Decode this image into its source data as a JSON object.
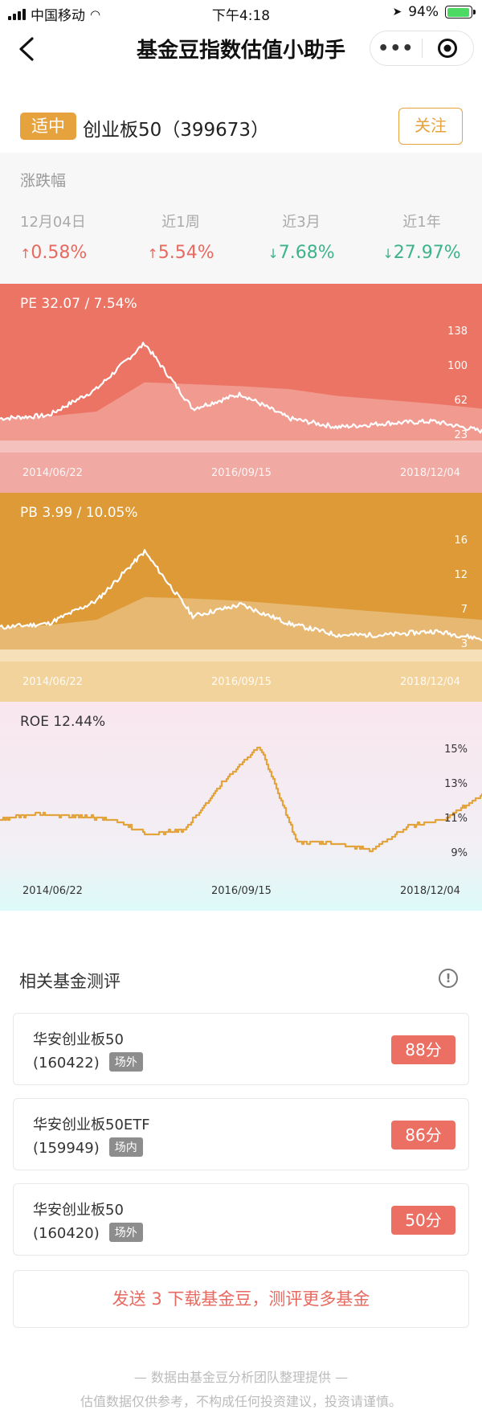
{
  "status_bar": {
    "carrier": "中国移动",
    "time": "下午4:18",
    "battery": "94%",
    "battery_level": 0.94
  },
  "nav": {
    "title": "基金豆指数估值小助手",
    "back_icon": "back-arrow-icon",
    "more_icon": "more-dots-icon",
    "target_icon": "target-circle-icon"
  },
  "header": {
    "tag": "适中",
    "name": "创业板50（399673）",
    "follow": "关注",
    "accent_color": "#e6a23c"
  },
  "changes": {
    "label": "涨跌幅",
    "items": [
      {
        "period": "12月04日",
        "value": "0.58%",
        "direction": "up"
      },
      {
        "period": "近1周",
        "value": "5.54%",
        "direction": "up"
      },
      {
        "period": "近3月",
        "value": "7.68%",
        "direction": "down"
      },
      {
        "period": "近1年",
        "value": "27.97%",
        "direction": "down"
      }
    ]
  },
  "charts": {
    "pe": {
      "title": "PE 32.07 / 7.54%",
      "ticks": [
        "138",
        "100",
        "62",
        "23"
      ],
      "dates": [
        "2014/06/22",
        "2016/09/15",
        "2018/12/04"
      ],
      "bg": "#ec7465"
    },
    "pb": {
      "title": "PB 3.99 / 10.05%",
      "ticks": [
        "16",
        "12",
        "7",
        "3"
      ],
      "dates": [
        "2014/06/22",
        "2016/09/15",
        "2018/12/04"
      ],
      "bg": "#dd9a36"
    },
    "roe": {
      "title": "ROE 12.44%",
      "ticks": [
        "15%",
        "13%",
        "11%",
        "9%"
      ],
      "dates": [
        "2014/06/22",
        "2016/09/15",
        "2018/12/04"
      ]
    }
  },
  "chart_data": [
    {
      "type": "line",
      "name": "PE",
      "x": [
        "2014/06/22",
        "2014/12",
        "2015/03",
        "2015/06",
        "2015/08",
        "2015/11",
        "2016/01",
        "2016/09/15",
        "2017/06",
        "2018/02",
        "2018/12/04"
      ],
      "y": [
        45,
        48,
        75,
        122,
        55,
        70,
        45,
        36,
        40,
        42,
        32
      ],
      "band": [
        45,
        47,
        52,
        82,
        80,
        78,
        75,
        68,
        64,
        60,
        55
      ],
      "ylim": [
        10,
        150
      ]
    },
    {
      "type": "line",
      "name": "PB",
      "x": [
        "2014/06/22",
        "2014/12",
        "2015/03",
        "2015/06",
        "2015/08",
        "2015/11",
        "2016/01",
        "2016/09/15",
        "2017/06",
        "2018/02",
        "2018/12/04"
      ],
      "y": [
        5.5,
        6,
        9,
        15.5,
        7,
        8.5,
        6,
        4.5,
        4.5,
        5,
        4
      ],
      "band": [
        5.5,
        5.8,
        6.5,
        9.5,
        9.3,
        9,
        8.5,
        8,
        7.5,
        7,
        6.5
      ],
      "ylim": [
        1,
        19
      ]
    },
    {
      "type": "line",
      "name": "ROE",
      "x": [
        "2014/06/22",
        "2014/12",
        "2015/03",
        "2015/06",
        "2015/09",
        "2016/01",
        "2016/04",
        "2016/06",
        "2016/09/15",
        "2017/01",
        "2017/06",
        "2017/12",
        "2018/06",
        "2018/12/04"
      ],
      "y": [
        11.0,
        11.3,
        11.2,
        11.0,
        10.1,
        10.4,
        13.2,
        15.3,
        9.7,
        9.6,
        9.2,
        10.6,
        11.0,
        12.44
      ],
      "ylim": [
        8,
        16
      ]
    }
  ],
  "funds": {
    "title": "相关基金测评",
    "info_icon": "info-icon",
    "items": [
      {
        "name": "华安创业板50",
        "code": "(160422)",
        "market": "场外",
        "score": "88分"
      },
      {
        "name": "华安创业板50ETF",
        "code": "(159949)",
        "market": "场内",
        "score": "86分"
      },
      {
        "name": "华安创业板50",
        "code": "(160420)",
        "market": "场外",
        "score": "50分"
      }
    ]
  },
  "cta": "发送 3 下载基金豆，测评更多基金",
  "footer": {
    "line1": "— 数据由基金豆分析团队整理提供 —",
    "line2": "估值数据仅供参考，不构成任何投资建议，投资请谨慎。"
  }
}
